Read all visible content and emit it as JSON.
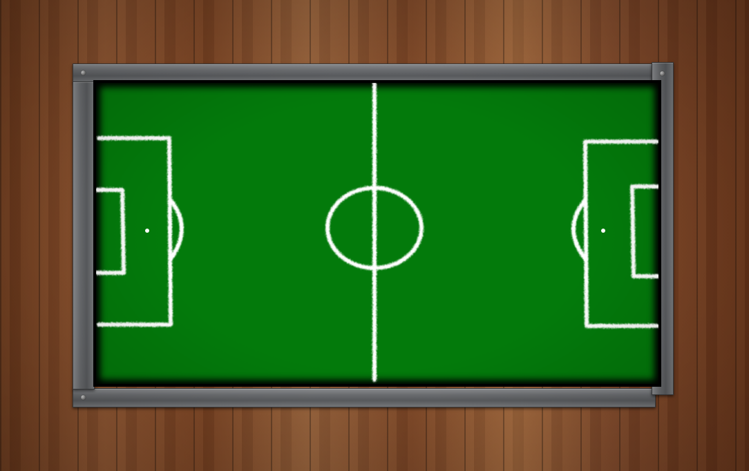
{
  "scene": {
    "name": "table-soccer-board",
    "background": "wood-floor",
    "frame_color": "#6c6e71",
    "pitch_color": "#037a0b",
    "line_color": "#ffffff"
  },
  "icons": {
    "bolt": "screw-bolt-icon",
    "center_spot": "center-spot",
    "penalty_spot": "penalty-spot"
  }
}
